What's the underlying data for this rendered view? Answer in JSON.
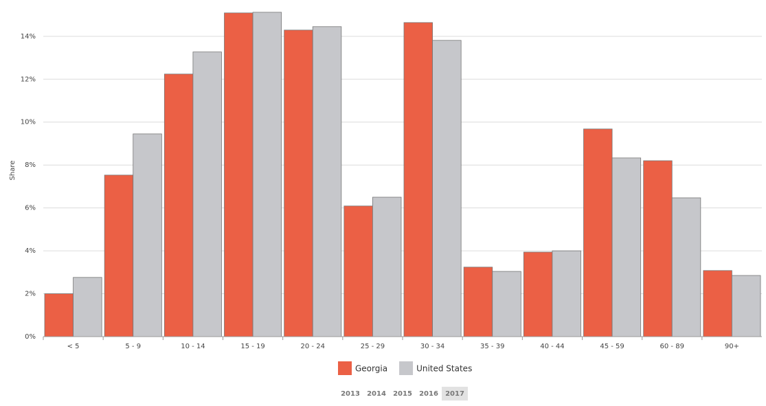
{
  "chart_data": {
    "type": "bar",
    "y_label": "Share",
    "categories": [
      "< 5",
      "5 - 9",
      "10 - 14",
      "15 - 19",
      "20 - 24",
      "25 - 29",
      "30 - 34",
      "35 - 39",
      "40 - 44",
      "45 - 59",
      "60 - 89",
      "90+"
    ],
    "series": [
      {
        "name": "Georgia",
        "color": "#eb6045",
        "values": [
          2.0,
          7.53,
          12.24,
          15.09,
          14.29,
          6.09,
          14.64,
          3.24,
          3.94,
          9.68,
          8.2,
          3.08
        ]
      },
      {
        "name": "United States",
        "color": "#c6c7cb",
        "values": [
          2.76,
          9.45,
          13.27,
          15.12,
          14.45,
          6.5,
          13.81,
          3.04,
          4.0,
          8.33,
          6.47,
          2.85
        ]
      }
    ],
    "ylim": [
      0,
      15.5
    ],
    "yticks": [
      {
        "value": 0,
        "label": "0%"
      },
      {
        "value": 2,
        "label": "2%"
      },
      {
        "value": 4,
        "label": "4%"
      },
      {
        "value": 6,
        "label": "6%"
      },
      {
        "value": 8,
        "label": "8%"
      },
      {
        "value": 10,
        "label": "10%"
      },
      {
        "value": 12,
        "label": "12%"
      },
      {
        "value": 14,
        "label": "14%"
      }
    ],
    "grid": true,
    "years": [
      {
        "label": "2013",
        "selected": false
      },
      {
        "label": "2014",
        "selected": false
      },
      {
        "label": "2015",
        "selected": false
      },
      {
        "label": "2016",
        "selected": false
      },
      {
        "label": "2017",
        "selected": true
      }
    ]
  }
}
